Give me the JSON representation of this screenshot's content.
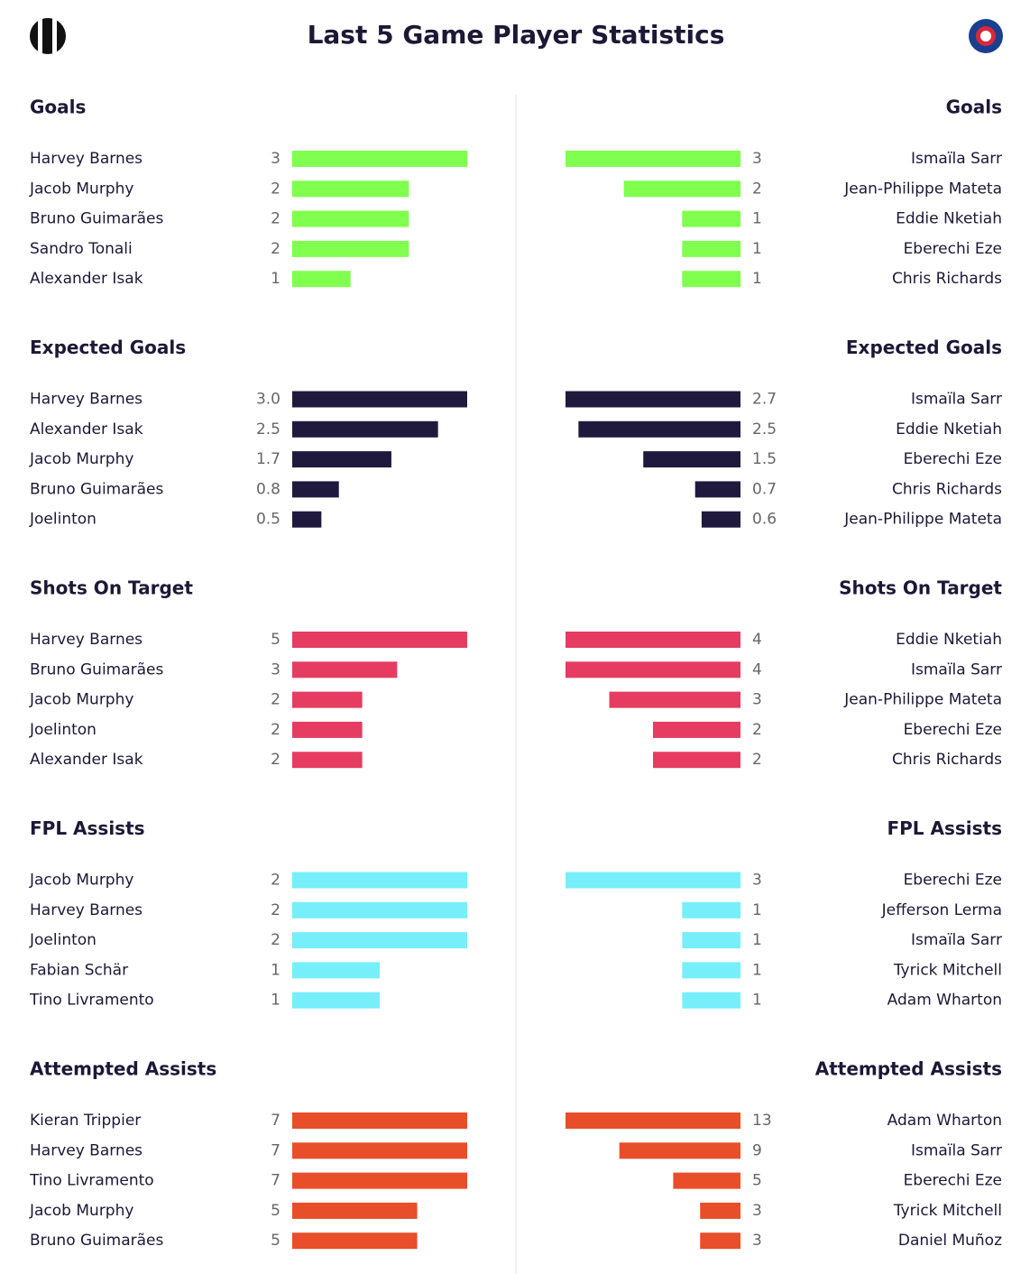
{
  "title": "Last 5 Game Player Statistics",
  "sections": [
    {
      "title": "Goals",
      "color": "#80ff4f",
      "home": {
        "players": [
          "Harvey Barnes",
          "Jacob Murphy",
          "Bruno Guimarães",
          "Sandro Tonali",
          "Alexander Isak"
        ],
        "values": [
          3,
          2,
          2,
          2,
          1
        ]
      },
      "away": {
        "players": [
          "Ismaïla Sarr",
          "Jean-Philippe Mateta",
          "Eddie Nketiah",
          "Eberechi Eze",
          "Chris Richards"
        ],
        "values": [
          3,
          2,
          1,
          1,
          1
        ]
      }
    },
    {
      "title": "Expected Goals",
      "color": "#1f1a3d",
      "home": {
        "players": [
          "Harvey Barnes",
          "Alexander Isak",
          "Jacob Murphy",
          "Bruno Guimarães",
          "Joelinton"
        ],
        "values": [
          3.0,
          2.5,
          1.7,
          0.8,
          0.5
        ],
        "value_labels": [
          "3.0",
          "2.5",
          "1.7",
          "0.8",
          "0.5"
        ]
      },
      "away": {
        "players": [
          "Ismaïla Sarr",
          "Eddie Nketiah",
          "Eberechi Eze",
          "Chris Richards",
          "Jean-Philippe Mateta"
        ],
        "values": [
          2.7,
          2.5,
          1.5,
          0.7,
          0.6
        ]
      }
    },
    {
      "title": "Shots On Target",
      "color": "#e63c62",
      "home": {
        "players": [
          "Harvey Barnes",
          "Bruno Guimarães",
          "Jacob Murphy",
          "Joelinton",
          "Alexander Isak"
        ],
        "values": [
          5,
          3,
          2,
          2,
          2
        ]
      },
      "away": {
        "players": [
          "Eddie Nketiah",
          "Ismaïla Sarr",
          "Jean-Philippe Mateta",
          "Eberechi Eze",
          "Chris Richards"
        ],
        "values": [
          4,
          4,
          3,
          2,
          2
        ]
      }
    },
    {
      "title": "FPL Assists",
      "color": "#76effb",
      "home": {
        "players": [
          "Jacob Murphy",
          "Harvey Barnes",
          "Joelinton",
          "Fabian Schär",
          "Tino Livramento"
        ],
        "values": [
          2,
          2,
          2,
          1,
          1
        ]
      },
      "away": {
        "players": [
          "Eberechi Eze",
          "Jefferson Lerma",
          "Ismaïla Sarr",
          "Tyrick Mitchell",
          "Adam Wharton"
        ],
        "values": [
          3,
          1,
          1,
          1,
          1
        ]
      }
    },
    {
      "title": "Attempted Assists",
      "color": "#e84e2a",
      "home": {
        "players": [
          "Kieran Trippier",
          "Harvey Barnes",
          "Tino Livramento",
          "Jacob Murphy",
          "Bruno Guimarães"
        ],
        "values": [
          7,
          7,
          7,
          5,
          5
        ]
      },
      "away": {
        "players": [
          "Adam Wharton",
          "Ismaïla Sarr",
          "Eberechi Eze",
          "Tyrick Mitchell",
          "Daniel Muñoz"
        ],
        "values": [
          13,
          9,
          5,
          3,
          3
        ]
      }
    }
  ]
}
